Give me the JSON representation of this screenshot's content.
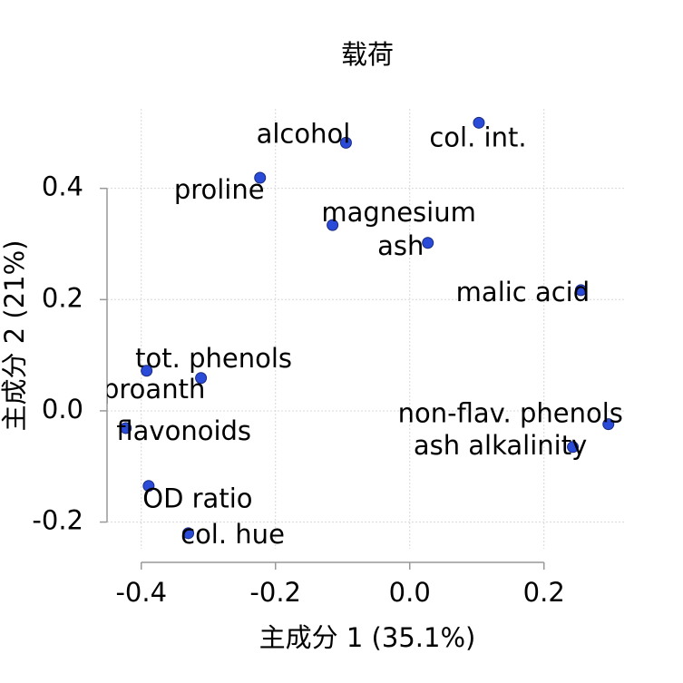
{
  "chart_data": {
    "type": "scatter",
    "title": "载荷",
    "x_label": "主成分 1 (35.1%)",
    "y_label": "主成分 2 (21%)",
    "labels": [
      "alcohol",
      "col. int.",
      "proline",
      "magnesium",
      "ash",
      "malic acid",
      "tot. phenols",
      "proanth",
      "flavonoids",
      "non-flav. phenols",
      "ash alkalinity",
      "OD ratio",
      "col. hue"
    ],
    "x": [
      -0.095,
      0.103,
      -0.223,
      -0.115,
      0.027,
      0.255,
      -0.311,
      -0.392,
      -0.423,
      0.296,
      0.243,
      -0.389,
      -0.33
    ],
    "values": [
      0.482,
      0.518,
      0.419,
      0.334,
      0.302,
      0.217,
      0.059,
      0.072,
      -0.031,
      -0.024,
      -0.065,
      -0.135,
      -0.22
    ],
    "color": "#2a4bd7",
    "xlim": [
      -0.451,
      0.322
    ],
    "ylim": [
      -0.248,
      0.543
    ],
    "xticks": [
      -0.4,
      -0.2,
      {
        "value": 0,
        "label": "0.0"
      },
      0.2
    ],
    "yticks": [
      -0.2,
      {
        "value": 0,
        "label": "0.0"
      },
      0.2,
      0.4
    ],
    "grid": true
  }
}
